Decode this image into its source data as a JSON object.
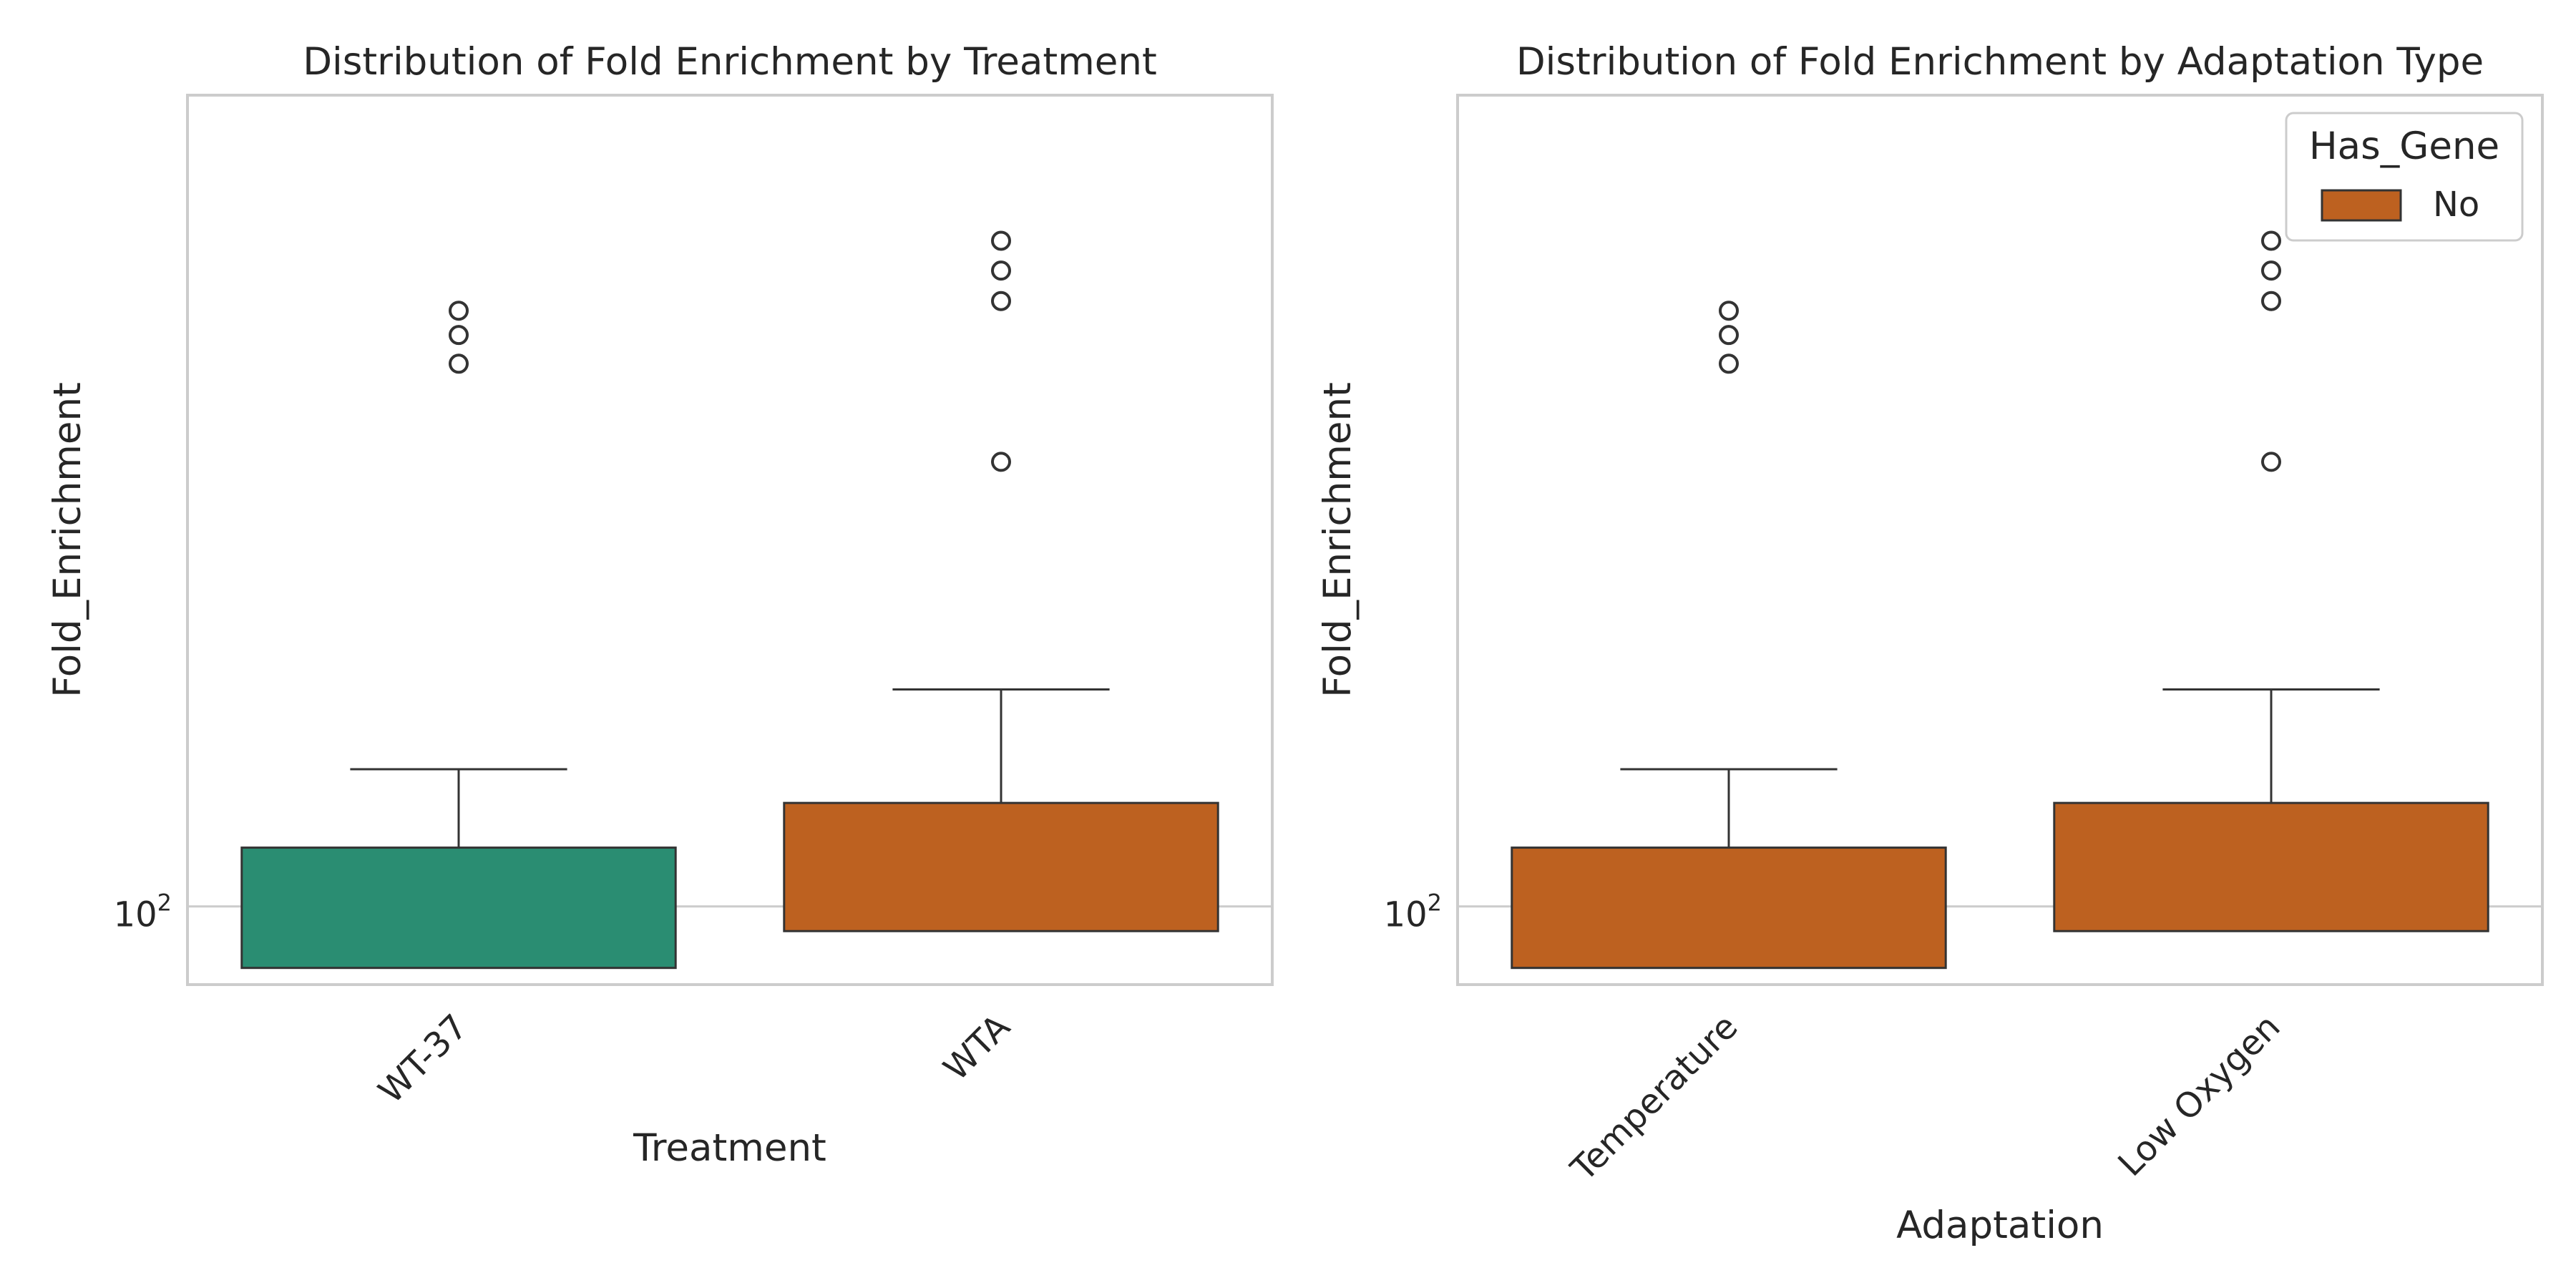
{
  "chart_data": [
    {
      "type": "box",
      "title": "Distribution of Fold Enrichment by Treatment",
      "xlabel": "Treatment",
      "ylabel": "Fold_Enrichment",
      "yscale": "log",
      "ylim": [
        85,
        540
      ],
      "yticks": [
        {
          "value": 100,
          "base": "10",
          "exp": "2"
        }
      ],
      "grid": "horizontal",
      "categories": [
        "WT-37",
        "WTA"
      ],
      "boxes": [
        {
          "category": "WT-37",
          "color": "#2a8d72",
          "whislo": 88,
          "q1": 88,
          "median": 88,
          "q3": 113,
          "whishi": 133,
          "fliers": [
            309,
            328,
            345
          ]
        },
        {
          "category": "WTA",
          "color": "#bd6120",
          "whislo": 95,
          "q1": 95,
          "median": 95,
          "q3": 124,
          "whishi": 157,
          "fliers": [
            252,
            352,
            375,
            399
          ]
        }
      ]
    },
    {
      "type": "box",
      "title": "Distribution of Fold Enrichment by Adaptation Type",
      "xlabel": "Adaptation",
      "ylabel": "Fold_Enrichment",
      "yscale": "log",
      "ylim": [
        85,
        540
      ],
      "yticks": [
        {
          "value": 100,
          "base": "10",
          "exp": "2"
        }
      ],
      "grid": "horizontal",
      "categories": [
        "Temperature",
        "Low Oxygen"
      ],
      "boxes": [
        {
          "category": "Temperature",
          "color": "#bd6120",
          "whislo": 88,
          "q1": 88,
          "median": 88,
          "q3": 113,
          "whishi": 133,
          "fliers": [
            309,
            328,
            345
          ]
        },
        {
          "category": "Low Oxygen",
          "color": "#bd6120",
          "whislo": 95,
          "q1": 95,
          "median": 95,
          "q3": 124,
          "whishi": 157,
          "fliers": [
            252,
            352,
            375,
            399
          ]
        }
      ],
      "legend": {
        "title": "Has_Gene",
        "placement": "top-right",
        "entries": [
          {
            "label": "No",
            "color": "#bd6120"
          }
        ]
      }
    }
  ]
}
